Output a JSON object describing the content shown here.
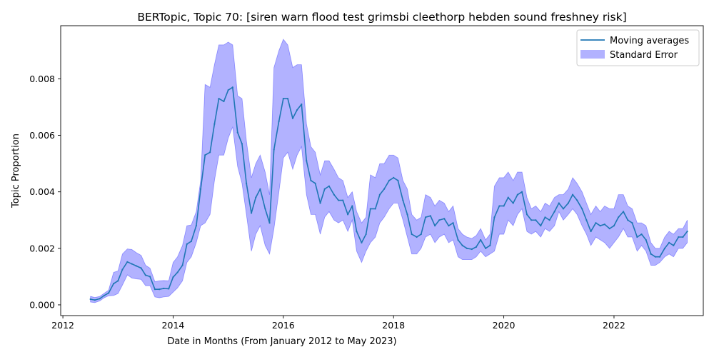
{
  "chart_data": {
    "type": "line",
    "title": "BERTopic, Topic 70: [siren warn flood test grimsbi cleethorp hebden sound freshney risk]",
    "xlabel": "Date in Months (From January 2012 to May 2023)",
    "ylabel": "Topic Proportion",
    "xlim": [
      2011.96,
      2023.62
    ],
    "ylim": [
      -0.00038,
      0.00988
    ],
    "xticks": [
      2012,
      2014,
      2016,
      2018,
      2020,
      2022
    ],
    "xtick_labels": [
      "2012",
      "2014",
      "2016",
      "2018",
      "2020",
      "2022"
    ],
    "yticks": [
      0.0,
      0.002,
      0.004,
      0.006,
      0.008
    ],
    "ytick_labels": [
      "0.000",
      "0.002",
      "0.004",
      "0.006",
      "0.008"
    ],
    "grid": false,
    "legend_position": "top-right",
    "colors": {
      "line": "#1f77b4",
      "band": "#0000ff",
      "band_opacity": 0.3
    },
    "series": [
      {
        "name": "Moving averages",
        "kind": "line",
        "x": [
          2012.5,
          2012.58,
          2012.67,
          2012.75,
          2012.83,
          2012.92,
          2013.0,
          2013.08,
          2013.17,
          2013.25,
          2013.33,
          2013.42,
          2013.5,
          2013.58,
          2013.67,
          2013.75,
          2013.83,
          2013.92,
          2014.0,
          2014.08,
          2014.17,
          2014.25,
          2014.33,
          2014.42,
          2014.5,
          2014.58,
          2014.67,
          2014.75,
          2014.83,
          2014.92,
          2015.0,
          2015.08,
          2015.17,
          2015.25,
          2015.33,
          2015.42,
          2015.5,
          2015.58,
          2015.67,
          2015.75,
          2015.83,
          2015.92,
          2016.0,
          2016.08,
          2016.17,
          2016.25,
          2016.33,
          2016.42,
          2016.5,
          2016.58,
          2016.67,
          2016.75,
          2016.83,
          2016.92,
          2017.0,
          2017.08,
          2017.17,
          2017.25,
          2017.33,
          2017.42,
          2017.5,
          2017.58,
          2017.67,
          2017.75,
          2017.83,
          2017.92,
          2018.0,
          2018.08,
          2018.17,
          2018.25,
          2018.33,
          2018.42,
          2018.5,
          2018.58,
          2018.67,
          2018.75,
          2018.83,
          2018.92,
          2019.0,
          2019.08,
          2019.17,
          2019.25,
          2019.33,
          2019.42,
          2019.5,
          2019.58,
          2019.67,
          2019.75,
          2019.83,
          2019.92,
          2020.0,
          2020.08,
          2020.17,
          2020.25,
          2020.33,
          2020.42,
          2020.5,
          2020.58,
          2020.67,
          2020.75,
          2020.83,
          2020.92,
          2021.0,
          2021.08,
          2021.17,
          2021.25,
          2021.33,
          2021.42,
          2021.5,
          2021.58,
          2021.67,
          2021.75,
          2021.83,
          2021.92,
          2022.0,
          2022.08,
          2022.17,
          2022.25,
          2022.33,
          2022.42,
          2022.5,
          2022.58,
          2022.67,
          2022.75,
          2022.83,
          2022.92,
          2023.0,
          2023.08,
          2023.17,
          2023.25,
          2023.33
        ],
        "y": [
          0.0002,
          0.00017,
          0.00022,
          0.00033,
          0.00042,
          0.00075,
          0.00085,
          0.00125,
          0.00152,
          0.00145,
          0.00138,
          0.0013,
          0.00105,
          0.001,
          0.00055,
          0.00055,
          0.00058,
          0.00057,
          0.00098,
          0.00115,
          0.0014,
          0.00215,
          0.00225,
          0.0028,
          0.0041,
          0.0053,
          0.0054,
          0.0064,
          0.0073,
          0.0072,
          0.0076,
          0.0077,
          0.0061,
          0.0057,
          0.0043,
          0.00325,
          0.0038,
          0.0041,
          0.0034,
          0.0029,
          0.0055,
          0.0065,
          0.0073,
          0.0073,
          0.0066,
          0.0069,
          0.0071,
          0.0051,
          0.0044,
          0.0043,
          0.0036,
          0.0041,
          0.0042,
          0.0039,
          0.0037,
          0.0037,
          0.0032,
          0.0035,
          0.0026,
          0.0022,
          0.0025,
          0.0034,
          0.0034,
          0.0039,
          0.0041,
          0.0044,
          0.0045,
          0.0044,
          0.0037,
          0.0032,
          0.0025,
          0.0024,
          0.0025,
          0.0031,
          0.00315,
          0.0028,
          0.003,
          0.00305,
          0.0028,
          0.0029,
          0.0023,
          0.0021,
          0.002,
          0.00197,
          0.00205,
          0.0023,
          0.002,
          0.0021,
          0.0031,
          0.0035,
          0.0035,
          0.0038,
          0.0036,
          0.0039,
          0.004,
          0.0032,
          0.003,
          0.003,
          0.0028,
          0.0031,
          0.003,
          0.0033,
          0.0036,
          0.0034,
          0.0036,
          0.0039,
          0.0037,
          0.0034,
          0.003,
          0.0026,
          0.0029,
          0.0028,
          0.00285,
          0.0027,
          0.0028,
          0.0031,
          0.0033,
          0.003,
          0.0029,
          0.0024,
          0.0025,
          0.0023,
          0.0018,
          0.0017,
          0.0017,
          0.002,
          0.0022,
          0.0021,
          0.0024,
          0.0024,
          0.0026
        ]
      },
      {
        "name": "Standard Error",
        "kind": "band",
        "upper": [
          0.0003,
          0.00026,
          0.0003,
          0.00041,
          0.00052,
          0.00115,
          0.0012,
          0.0018,
          0.00198,
          0.00196,
          0.00185,
          0.00175,
          0.0014,
          0.0013,
          0.00082,
          0.00085,
          0.00086,
          0.00085,
          0.0015,
          0.0017,
          0.0021,
          0.0028,
          0.00283,
          0.0033,
          0.0044,
          0.0078,
          0.0077,
          0.0085,
          0.0092,
          0.0092,
          0.0093,
          0.0092,
          0.0074,
          0.0073,
          0.0058,
          0.0045,
          0.005,
          0.0053,
          0.0047,
          0.0039,
          0.0084,
          0.009,
          0.0094,
          0.0092,
          0.0084,
          0.0085,
          0.0085,
          0.0064,
          0.0056,
          0.0054,
          0.0046,
          0.0051,
          0.0051,
          0.0048,
          0.0045,
          0.0044,
          0.0038,
          0.004,
          0.0033,
          0.0029,
          0.0031,
          0.0046,
          0.0045,
          0.005,
          0.005,
          0.0053,
          0.0053,
          0.0052,
          0.0044,
          0.0041,
          0.0032,
          0.003,
          0.0031,
          0.0039,
          0.0038,
          0.0035,
          0.0037,
          0.0036,
          0.0033,
          0.0035,
          0.0027,
          0.0025,
          0.0024,
          0.00235,
          0.00245,
          0.0027,
          0.0023,
          0.0025,
          0.0042,
          0.0045,
          0.0045,
          0.0047,
          0.0044,
          0.0047,
          0.0047,
          0.0038,
          0.0034,
          0.0035,
          0.0033,
          0.0036,
          0.0035,
          0.0038,
          0.0039,
          0.0039,
          0.0041,
          0.0045,
          0.0043,
          0.004,
          0.0036,
          0.0032,
          0.0035,
          0.0033,
          0.0035,
          0.0034,
          0.0034,
          0.0039,
          0.0039,
          0.0035,
          0.0034,
          0.0029,
          0.0029,
          0.0028,
          0.0022,
          0.002,
          0.002,
          0.0024,
          0.0026,
          0.0025,
          0.0027,
          0.0027,
          0.003
        ],
        "lower": [
          0.0001,
          8e-05,
          0.00014,
          0.00025,
          0.00032,
          0.00033,
          0.0004,
          0.0007,
          0.00106,
          0.00095,
          0.00092,
          0.0009,
          0.00068,
          0.00068,
          0.00028,
          0.00025,
          0.00028,
          0.0003,
          0.00045,
          0.0006,
          0.00085,
          0.0015,
          0.0017,
          0.0022,
          0.0028,
          0.0029,
          0.0032,
          0.0044,
          0.0053,
          0.0053,
          0.0059,
          0.0063,
          0.0049,
          0.0043,
          0.0032,
          0.0019,
          0.0025,
          0.0028,
          0.0021,
          0.0018,
          0.0027,
          0.004,
          0.0052,
          0.0054,
          0.0048,
          0.0053,
          0.0056,
          0.0039,
          0.0032,
          0.0032,
          0.0025,
          0.0031,
          0.0033,
          0.003,
          0.0029,
          0.003,
          0.0026,
          0.003,
          0.0019,
          0.0015,
          0.0019,
          0.0022,
          0.0024,
          0.0029,
          0.0031,
          0.0034,
          0.0036,
          0.0036,
          0.003,
          0.0024,
          0.0018,
          0.0018,
          0.002,
          0.0024,
          0.0025,
          0.0022,
          0.0024,
          0.0025,
          0.0022,
          0.0023,
          0.0017,
          0.0016,
          0.0016,
          0.0016,
          0.0017,
          0.0019,
          0.0017,
          0.0018,
          0.0019,
          0.0025,
          0.0025,
          0.003,
          0.0028,
          0.0032,
          0.0034,
          0.0026,
          0.0025,
          0.0026,
          0.0024,
          0.0027,
          0.0026,
          0.0028,
          0.0033,
          0.003,
          0.0032,
          0.0034,
          0.0032,
          0.0028,
          0.0025,
          0.0021,
          0.0024,
          0.0023,
          0.0022,
          0.002,
          0.0022,
          0.0024,
          0.0027,
          0.0024,
          0.0024,
          0.0019,
          0.0021,
          0.0019,
          0.0014,
          0.0014,
          0.0015,
          0.0017,
          0.0018,
          0.0017,
          0.002,
          0.002,
          0.0022
        ]
      }
    ]
  }
}
